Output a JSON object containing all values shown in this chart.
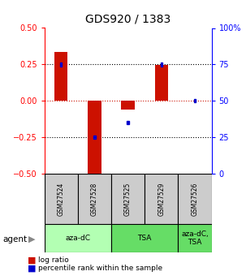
{
  "title": "GDS920 / 1383",
  "samples": [
    "GSM27524",
    "GSM27528",
    "GSM27525",
    "GSM27529",
    "GSM27526"
  ],
  "log_ratios": [
    0.335,
    -0.52,
    -0.06,
    0.245,
    0.0
  ],
  "percentile_ranks": [
    75,
    25,
    35,
    75,
    50
  ],
  "agent_groups": [
    {
      "label": "aza-dC",
      "span": [
        0,
        2
      ],
      "color": "#b3ffb3"
    },
    {
      "label": "TSA",
      "span": [
        2,
        4
      ],
      "color": "#66dd66"
    },
    {
      "label": "aza-dC,\nTSA",
      "span": [
        4,
        5
      ],
      "color": "#66dd66"
    }
  ],
  "ylim_left": [
    -0.5,
    0.5
  ],
  "ylim_right": [
    0,
    100
  ],
  "yticks_left": [
    -0.5,
    -0.25,
    0,
    0.25,
    0.5
  ],
  "yticks_right": [
    0,
    25,
    50,
    75,
    100
  ],
  "hlines_black": [
    -0.25,
    0.25
  ],
  "hline_red": 0.0,
  "bar_color": "#cc1100",
  "percentile_color": "#0000cc",
  "bar_width": 0.4,
  "background_color": "#ffffff"
}
